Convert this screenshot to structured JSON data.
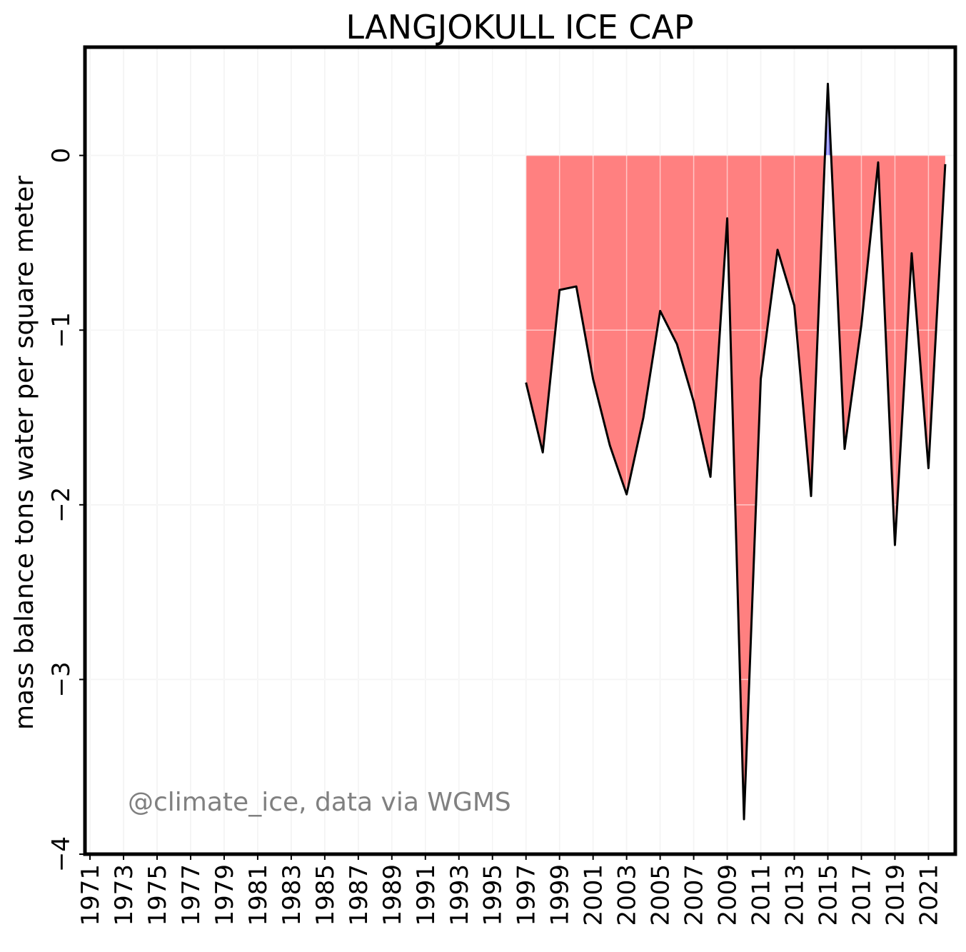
{
  "chart_data": {
    "type": "area",
    "title": "LANGJOKULL ICE CAP",
    "xlabel": "",
    "ylabel": "mass balance tons water per square meter",
    "annotation": "@climate_ice, data via WGMS",
    "xlim": [
      1970.7,
      2022.6
    ],
    "ylim": [
      -4,
      0.62
    ],
    "yticks": [
      0,
      -1,
      -2,
      -3,
      -4
    ],
    "ytick_labels": [
      "0",
      "−1",
      "−2",
      "−3",
      "−4"
    ],
    "xticks": [
      1971,
      1973,
      1975,
      1977,
      1979,
      1981,
      1983,
      1985,
      1987,
      1989,
      1991,
      1993,
      1995,
      1997,
      1999,
      2001,
      2003,
      2005,
      2007,
      2009,
      2011,
      2013,
      2015,
      2017,
      2019,
      2021
    ],
    "grid": true,
    "colors": {
      "negative_fill": "#ff8080",
      "positive_fill": "#8080ff",
      "line": "#000000",
      "grid": "#e6e6e6"
    },
    "series": [
      {
        "x": [
          1997,
          1998,
          1999,
          2000,
          2001,
          2002,
          2003,
          2004,
          2005,
          2006,
          2007,
          2008,
          2009,
          2010,
          2011,
          2012,
          2013,
          2014,
          2015,
          2016,
          2017,
          2018,
          2019,
          2020,
          2021,
          2022
        ],
        "values": [
          -1.3,
          -1.7,
          -0.77,
          -0.75,
          -1.28,
          -1.66,
          -1.94,
          -1.5,
          -0.89,
          -1.08,
          -1.41,
          -1.84,
          -0.36,
          -3.8,
          -1.28,
          -0.54,
          -0.86,
          -1.95,
          0.41,
          -1.68,
          -0.97,
          -0.04,
          -2.23,
          -0.56,
          -1.79,
          -0.05
        ]
      }
    ]
  }
}
